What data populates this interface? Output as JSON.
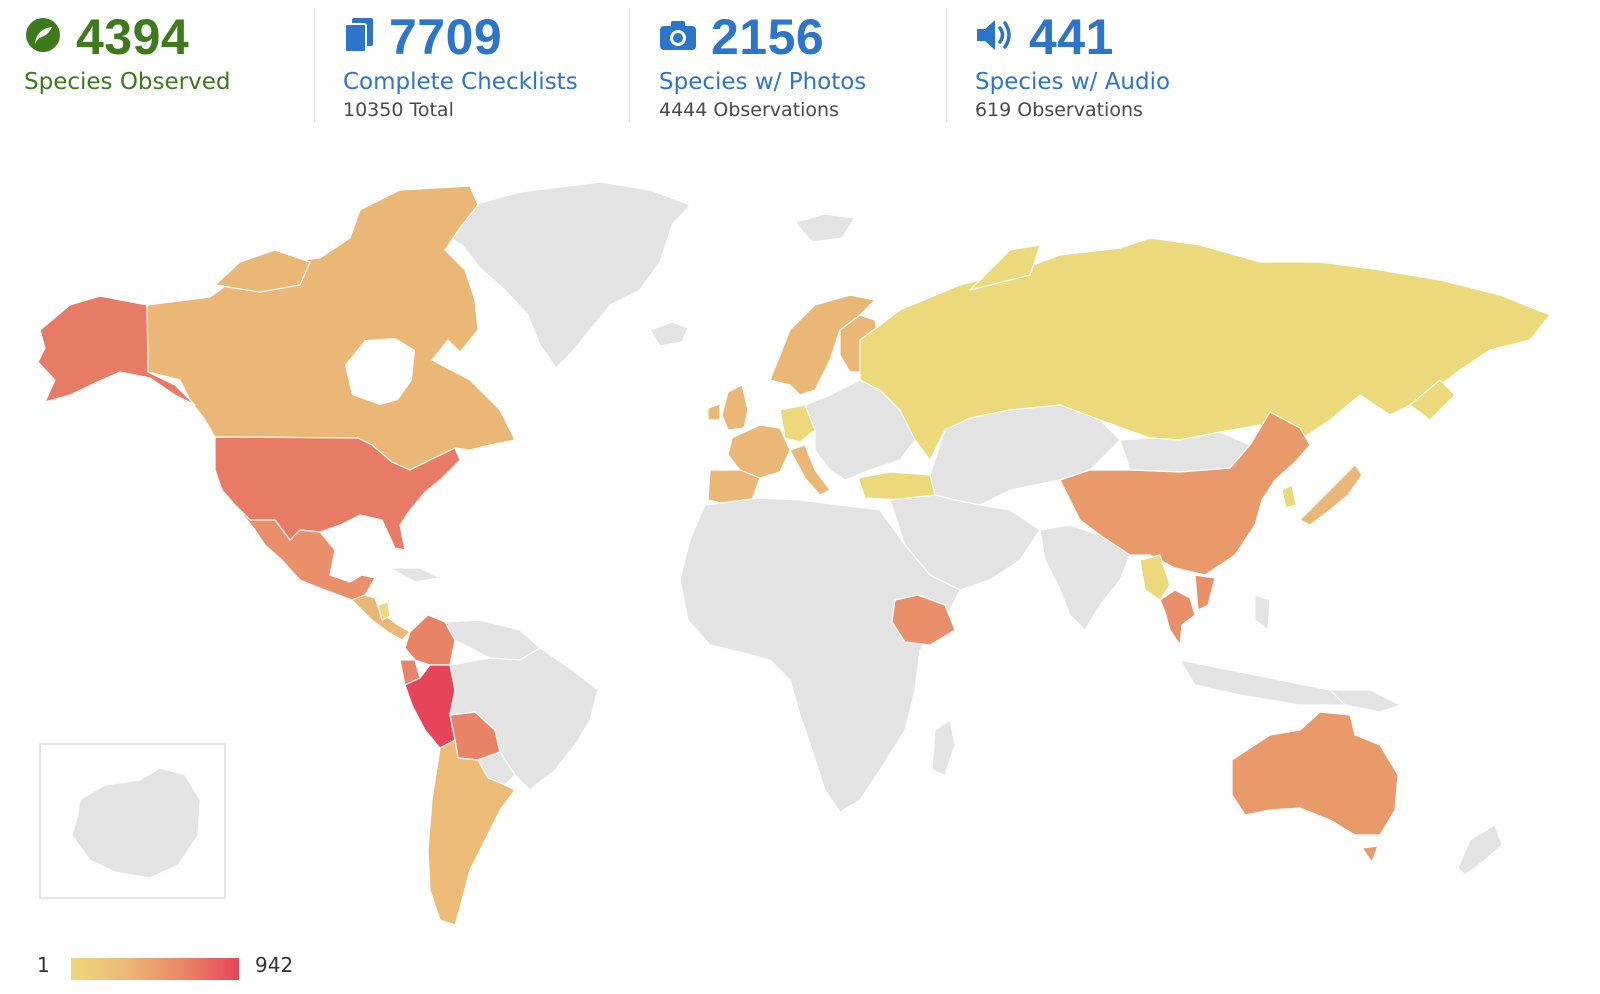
{
  "stats": [
    {
      "number": "4394",
      "label": "Species Observed",
      "sub": "",
      "icon": "leaf-icon"
    },
    {
      "number": "7709",
      "label": "Complete Checklists",
      "sub": "10350 Total",
      "icon": "checklist-icon"
    },
    {
      "number": "2156",
      "label": "Species w/ Photos",
      "sub": "4444 Observations",
      "icon": "camera-icon"
    },
    {
      "number": "441",
      "label": "Species w/ Audio",
      "sub": "619 Observations",
      "icon": "speaker-icon"
    }
  ],
  "legend": {
    "min": "1",
    "max": "942"
  },
  "colors": {
    "green": "#3d7a1c",
    "blue": "#2d75c8",
    "no_data": "#e3e3e3",
    "scale_low": "#ecd97b",
    "scale_mid": "#ebb777",
    "scale_high": "#e98765",
    "scale_max": "#e6445a"
  },
  "map_regions": [
    {
      "name": "Alaska",
      "color": "#e77b66"
    },
    {
      "name": "Canada",
      "color": "#ebb777"
    },
    {
      "name": "United States",
      "color": "#e77b66"
    },
    {
      "name": "Mexico",
      "color": "#e98f6a"
    },
    {
      "name": "Colombia",
      "color": "#e98365"
    },
    {
      "name": "Peru",
      "color": "#e6445a"
    },
    {
      "name": "Bolivia",
      "color": "#e98365"
    },
    {
      "name": "Argentina / Chile",
      "color": "#ebbb77"
    },
    {
      "name": "Greenland",
      "color": "#e3e3e3"
    },
    {
      "name": "Europe",
      "color": "#ebb777"
    },
    {
      "name": "Russia",
      "color": "#ecd97b"
    },
    {
      "name": "China",
      "color": "#e99a6b"
    },
    {
      "name": "Ethiopia",
      "color": "#e98f6a"
    },
    {
      "name": "Australia",
      "color": "#e99a6b"
    },
    {
      "name": "Japan",
      "color": "#ebb777"
    },
    {
      "name": "Southeast Asia",
      "color": "#e98f6a"
    },
    {
      "name": "Turkey",
      "color": "#ecd97b"
    }
  ]
}
